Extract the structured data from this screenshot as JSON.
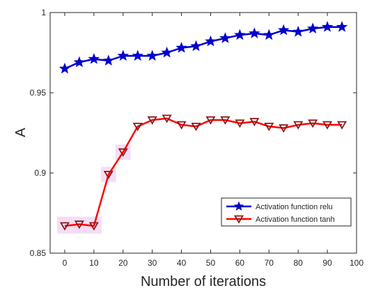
{
  "chart_data": {
    "type": "line",
    "xlabel": "Number of iterations",
    "ylabel": "A",
    "xlim": [
      -5,
      100
    ],
    "ylim": [
      0.85,
      1.0
    ],
    "xticks": [
      0,
      10,
      20,
      30,
      40,
      50,
      60,
      70,
      80,
      90,
      100
    ],
    "yticks": [
      0.85,
      0.9,
      0.95,
      1.0
    ],
    "ytick_labels": [
      "0.85",
      "0.9",
      "0.95",
      "1"
    ],
    "grid": false,
    "legend_position": "lower-right",
    "x": [
      0,
      5,
      10,
      15,
      20,
      25,
      30,
      35,
      40,
      45,
      50,
      55,
      60,
      65,
      70,
      75,
      80,
      85,
      90,
      95
    ],
    "series": [
      {
        "name": "Activation function relu",
        "color": "#0000cc",
        "marker": "star",
        "values": [
          0.965,
          0.969,
          0.971,
          0.97,
          0.973,
          0.973,
          0.973,
          0.975,
          0.978,
          0.979,
          0.982,
          0.984,
          0.986,
          0.987,
          0.986,
          0.989,
          0.988,
          0.99,
          0.991,
          0.991
        ]
      },
      {
        "name": "Activation function tanh",
        "color": "#ff0000",
        "marker_color": "#8b1a1a",
        "marker": "triangle-down",
        "values": [
          0.867,
          0.868,
          0.867,
          0.899,
          0.913,
          0.929,
          0.933,
          0.934,
          0.93,
          0.929,
          0.933,
          0.933,
          0.931,
          0.932,
          0.929,
          0.928,
          0.93,
          0.931,
          0.93,
          0.93
        ]
      }
    ]
  }
}
